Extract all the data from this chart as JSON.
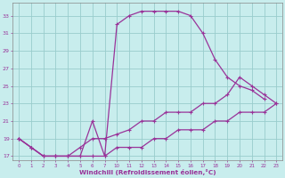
{
  "bg_color": "#c8eded",
  "grid_color": "#99cccc",
  "line_color": "#993399",
  "ylim": [
    16.5,
    34.5
  ],
  "yticks": [
    17,
    19,
    21,
    23,
    25,
    27,
    29,
    31,
    33
  ],
  "xlabel": "Windchill (Refroidissement éolien,°C)",
  "tick_labels": [
    "0",
    "1",
    "2",
    "3",
    "4",
    "5",
    "6",
    "7",
    "10",
    "11",
    "12",
    "13",
    "14",
    "15",
    "16",
    "17",
    "18",
    "19",
    "20",
    "21",
    "22",
    "23"
  ],
  "curves": [
    {
      "xi": [
        0,
        1,
        2,
        3,
        4,
        5,
        6,
        7,
        8,
        9,
        10,
        11,
        12,
        13,
        14,
        15,
        16,
        17,
        18,
        19,
        20
      ],
      "y": [
        19,
        18,
        17,
        17,
        17,
        17,
        21,
        17,
        32,
        33,
        33.5,
        33.5,
        33.5,
        33.5,
        33,
        31,
        28,
        26,
        25,
        24.5,
        23.5
      ]
    },
    {
      "xi": [
        0,
        1,
        2,
        3,
        4,
        5,
        6,
        7,
        8,
        9,
        10,
        11,
        12,
        13,
        14,
        15,
        16,
        17,
        18,
        19,
        20,
        21
      ],
      "y": [
        19,
        18,
        17,
        17,
        17,
        18,
        19,
        19,
        19.5,
        20,
        21,
        21,
        22,
        22,
        22,
        23,
        23,
        24,
        26,
        25,
        24,
        23
      ]
    },
    {
      "xi": [
        0,
        1,
        2,
        3,
        4,
        5,
        6,
        7,
        8,
        9,
        10,
        11,
        12,
        13,
        14,
        15,
        16,
        17,
        18,
        19,
        20,
        21
      ],
      "y": [
        19,
        18,
        17,
        17,
        17,
        17,
        17,
        17,
        18,
        18,
        18,
        19,
        19,
        20,
        20,
        20,
        21,
        21,
        22,
        22,
        22,
        23
      ]
    }
  ]
}
